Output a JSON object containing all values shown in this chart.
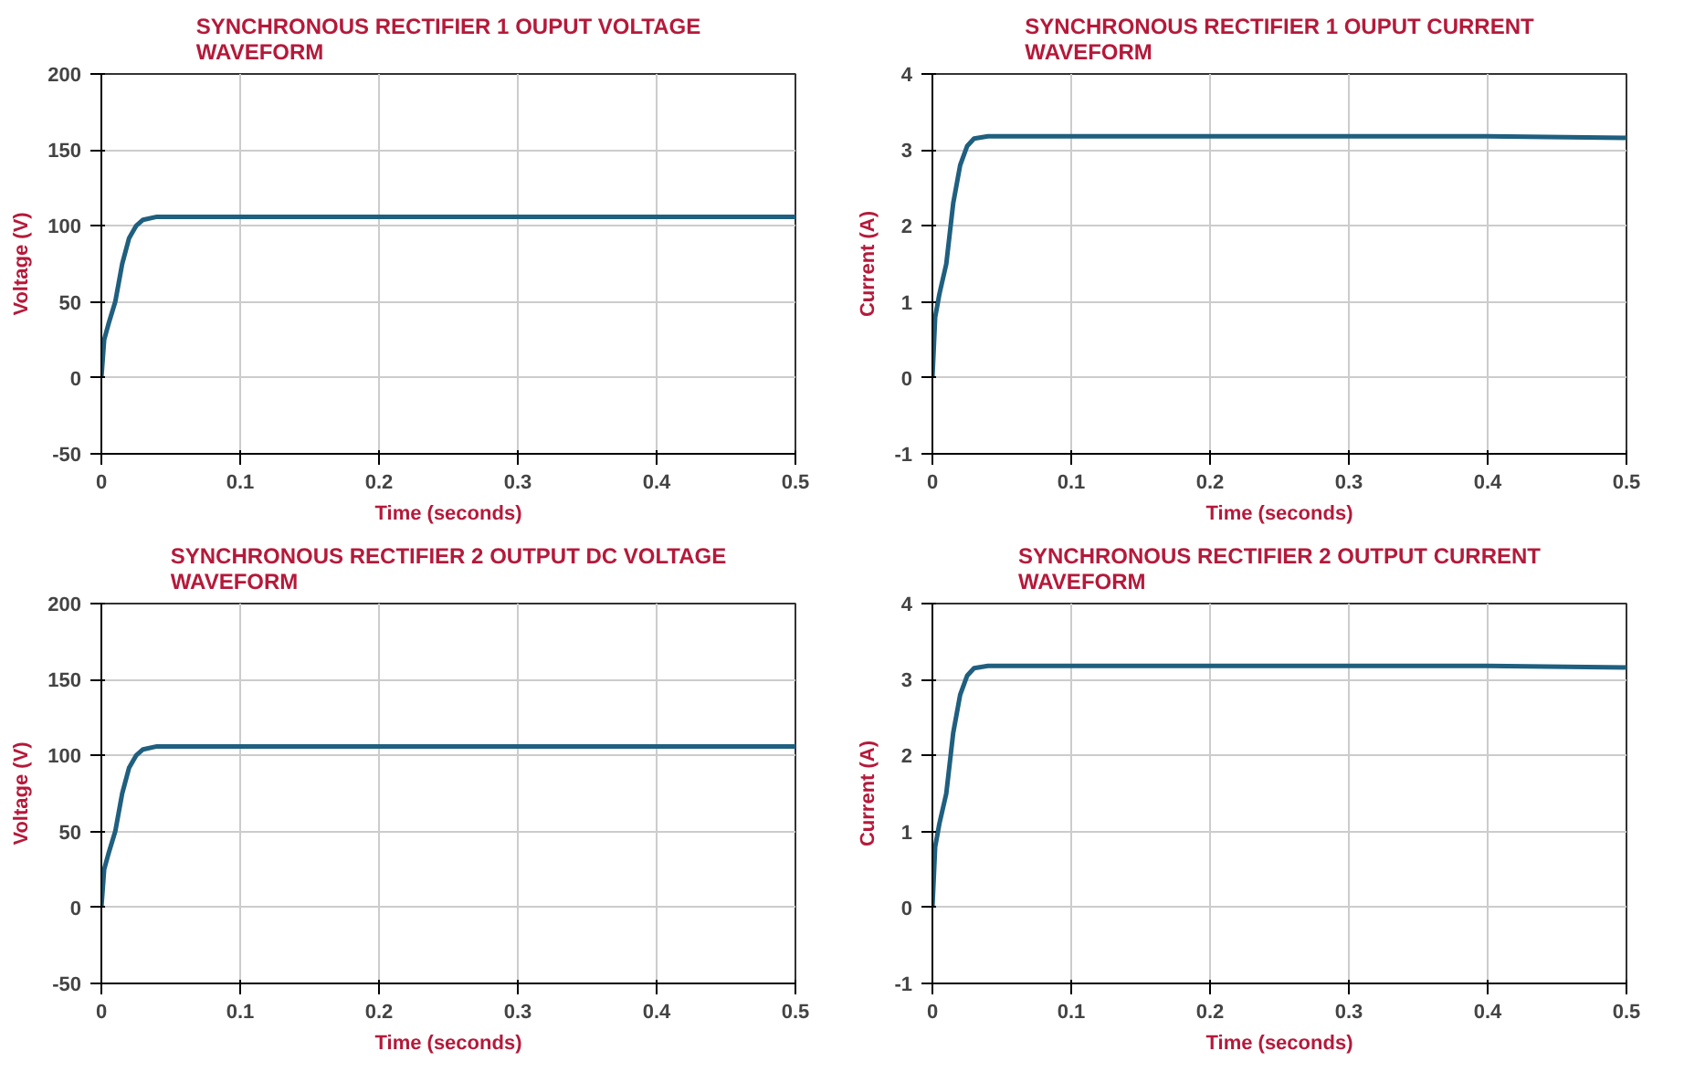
{
  "chart_data": [
    {
      "type": "line",
      "title": "SYNCHRONOUS RECTIFIER 1 OUPUT VOLTAGE\nWAVEFORM",
      "xlabel": "Time (seconds)",
      "ylabel": "Voltage (V)",
      "xlim": [
        0,
        0.5
      ],
      "xticks": [
        0,
        0.1,
        0.2,
        0.3,
        0.4,
        0.5
      ],
      "ylim": [
        -50,
        200
      ],
      "yticks": [
        -50,
        0,
        50,
        100,
        150,
        200
      ],
      "grid": true,
      "x": [
        0,
        0.002,
        0.005,
        0.01,
        0.015,
        0.02,
        0.025,
        0.03,
        0.04,
        0.1,
        0.2,
        0.3,
        0.4,
        0.5
      ],
      "series": [
        {
          "color": "#1f5f7f",
          "values": [
            0,
            25,
            35,
            50,
            75,
            92,
            100,
            104,
            106,
            106,
            106,
            106,
            106,
            106
          ]
        }
      ]
    },
    {
      "type": "line",
      "title": "SYNCHRONOUS RECTIFIER 1 OUPUT CURRENT\nWAVEFORM",
      "xlabel": "Time (seconds)",
      "ylabel": "Current (A)",
      "xlim": [
        0,
        0.5
      ],
      "xticks": [
        0,
        0.1,
        0.2,
        0.3,
        0.4,
        0.5
      ],
      "ylim": [
        -1,
        4
      ],
      "yticks": [
        -1,
        0,
        1,
        2,
        3,
        4
      ],
      "grid": true,
      "x": [
        0,
        0.002,
        0.005,
        0.01,
        0.015,
        0.02,
        0.025,
        0.03,
        0.04,
        0.1,
        0.2,
        0.3,
        0.4,
        0.5
      ],
      "series": [
        {
          "color": "#1f5f7f",
          "values": [
            0,
            0.8,
            1.1,
            1.5,
            2.3,
            2.8,
            3.05,
            3.15,
            3.18,
            3.18,
            3.18,
            3.18,
            3.18,
            3.16
          ]
        }
      ]
    },
    {
      "type": "line",
      "title": "SYNCHRONOUS RECTIFIER 2 OUTPUT DC VOLTAGE\nWAVEFORM",
      "xlabel": "Time (seconds)",
      "ylabel": "Voltage (V)",
      "xlim": [
        0,
        0.5
      ],
      "xticks": [
        0,
        0.1,
        0.2,
        0.3,
        0.4,
        0.5
      ],
      "ylim": [
        -50,
        200
      ],
      "yticks": [
        -50,
        0,
        50,
        100,
        150,
        200
      ],
      "grid": true,
      "x": [
        0,
        0.002,
        0.005,
        0.01,
        0.015,
        0.02,
        0.025,
        0.03,
        0.04,
        0.1,
        0.2,
        0.3,
        0.4,
        0.5
      ],
      "series": [
        {
          "color": "#1f5f7f",
          "values": [
            0,
            25,
            35,
            50,
            75,
            92,
            100,
            104,
            106,
            106,
            106,
            106,
            106,
            106
          ]
        }
      ]
    },
    {
      "type": "line",
      "title": "SYNCHRONOUS RECTIFIER 2 OUTPUT CURRENT\nWAVEFORM",
      "xlabel": "Time (seconds)",
      "ylabel": "Current (A)",
      "xlim": [
        0,
        0.5
      ],
      "xticks": [
        0,
        0.1,
        0.2,
        0.3,
        0.4,
        0.5
      ],
      "ylim": [
        -1,
        4
      ],
      "yticks": [
        -1,
        0,
        1,
        2,
        3,
        4
      ],
      "grid": true,
      "x": [
        0,
        0.002,
        0.005,
        0.01,
        0.015,
        0.02,
        0.025,
        0.03,
        0.04,
        0.1,
        0.2,
        0.3,
        0.4,
        0.5
      ],
      "series": [
        {
          "color": "#1f5f7f",
          "values": [
            0,
            0.8,
            1.1,
            1.5,
            2.3,
            2.8,
            3.05,
            3.15,
            3.18,
            3.18,
            3.18,
            3.18,
            3.18,
            3.16
          ]
        }
      ]
    }
  ]
}
